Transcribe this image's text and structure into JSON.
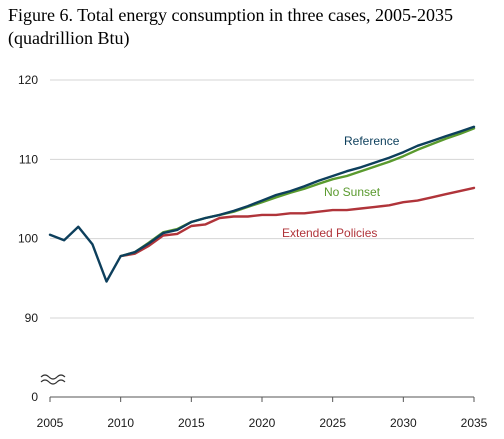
{
  "title_line1": "Figure 6. Total energy consumption in three cases, 2005-2035",
  "title_line2": "(quadrillion Btu)",
  "chart_data": {
    "type": "line",
    "title": "Figure 6. Total energy consumption in three cases, 2005-2035 (quadrillion Btu)",
    "xlabel": "",
    "ylabel": "",
    "xlim": [
      2005,
      2035
    ],
    "ylim": [
      0,
      120
    ],
    "axis_break": true,
    "grid": "horizontal",
    "xticks": [
      2005,
      2010,
      2015,
      2020,
      2025,
      2030,
      2035
    ],
    "yticks": [
      0,
      90,
      100,
      110,
      120
    ],
    "legend": "inline labels",
    "series": [
      {
        "name": "Reference",
        "color": "#0d3f5c",
        "x": [
          2005,
          2006,
          2007,
          2008,
          2009,
          2010,
          2011,
          2012,
          2013,
          2014,
          2015,
          2016,
          2017,
          2018,
          2019,
          2020,
          2021,
          2022,
          2023,
          2024,
          2025,
          2026,
          2027,
          2028,
          2029,
          2030,
          2031,
          2032,
          2033,
          2034,
          2035
        ],
        "y": [
          100.5,
          99.8,
          101.5,
          99.3,
          94.6,
          97.8,
          98.3,
          99.4,
          100.7,
          101.1,
          102.1,
          102.6,
          103.0,
          103.5,
          104.1,
          104.8,
          105.5,
          106.0,
          106.6,
          107.3,
          107.9,
          108.5,
          109.0,
          109.6,
          110.2,
          110.9,
          111.7,
          112.3,
          112.9,
          113.5,
          114.1
        ]
      },
      {
        "name": "No Sunset",
        "color": "#5a9a2e",
        "x": [
          2010,
          2011,
          2012,
          2013,
          2014,
          2015,
          2016,
          2017,
          2018,
          2019,
          2020,
          2021,
          2022,
          2023,
          2024,
          2025,
          2026,
          2027,
          2028,
          2029,
          2030,
          2031,
          2032,
          2033,
          2034,
          2035
        ],
        "y": [
          97.8,
          98.3,
          99.5,
          100.8,
          101.2,
          102.1,
          102.6,
          103.0,
          103.4,
          104.0,
          104.6,
          105.2,
          105.8,
          106.3,
          106.9,
          107.5,
          107.9,
          108.5,
          109.1,
          109.7,
          110.4,
          111.2,
          111.9,
          112.6,
          113.2,
          113.9
        ]
      },
      {
        "name": "Extended Policies",
        "color": "#b0343a",
        "x": [
          2010,
          2011,
          2012,
          2013,
          2014,
          2015,
          2016,
          2017,
          2018,
          2019,
          2020,
          2021,
          2022,
          2023,
          2024,
          2025,
          2026,
          2027,
          2028,
          2029,
          2030,
          2031,
          2032,
          2033,
          2034,
          2035
        ],
        "y": [
          97.8,
          98.1,
          99.1,
          100.4,
          100.6,
          101.6,
          101.8,
          102.6,
          102.8,
          102.8,
          103.0,
          103.0,
          103.2,
          103.2,
          103.4,
          103.6,
          103.6,
          103.8,
          104.0,
          104.2,
          104.6,
          104.8,
          105.2,
          105.6,
          106.0,
          106.4
        ]
      }
    ]
  }
}
